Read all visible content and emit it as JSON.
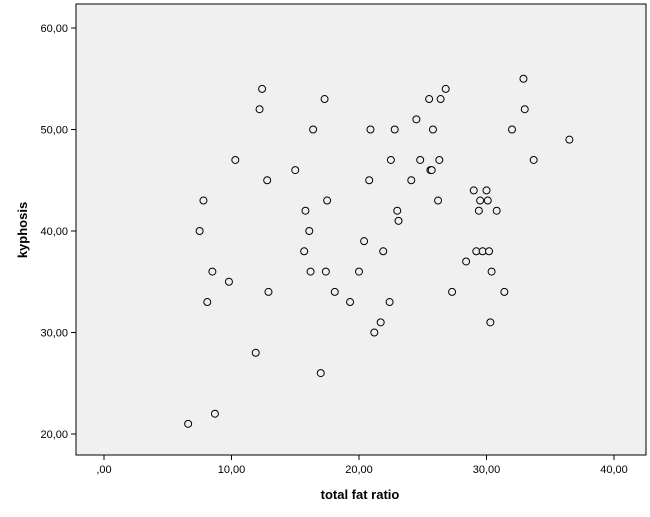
{
  "chart_data": {
    "type": "scatter",
    "title": "",
    "xlabel": "total fat ratio",
    "ylabel": "kyphosis",
    "xlim": [
      0,
      40
    ],
    "ylim": [
      20,
      60
    ],
    "x_ticks": [
      {
        "value": 0,
        "label": ",00"
      },
      {
        "value": 10,
        "label": "10,00"
      },
      {
        "value": 20,
        "label": "20,00"
      },
      {
        "value": 30,
        "label": "30,00"
      },
      {
        "value": 40,
        "label": "40,00"
      }
    ],
    "y_ticks": [
      {
        "value": 20,
        "label": "20,00"
      },
      {
        "value": 30,
        "label": "30,00"
      },
      {
        "value": 40,
        "label": "40,00"
      },
      {
        "value": 50,
        "label": "50,00"
      },
      {
        "value": 60,
        "label": "60,00"
      }
    ],
    "grid": false,
    "colors": {
      "background": "#f0f0f0",
      "marker_fill": "#f0f0f0",
      "marker_stroke": "#000000"
    },
    "points": [
      {
        "x": 6.6,
        "y": 21
      },
      {
        "x": 8.7,
        "y": 22
      },
      {
        "x": 7.5,
        "y": 40
      },
      {
        "x": 7.8,
        "y": 43
      },
      {
        "x": 8.1,
        "y": 33
      },
      {
        "x": 8.5,
        "y": 36
      },
      {
        "x": 9.8,
        "y": 35
      },
      {
        "x": 10.3,
        "y": 47
      },
      {
        "x": 11.9,
        "y": 28
      },
      {
        "x": 12.2,
        "y": 52
      },
      {
        "x": 12.4,
        "y": 54
      },
      {
        "x": 12.8,
        "y": 45
      },
      {
        "x": 12.9,
        "y": 34
      },
      {
        "x": 15.0,
        "y": 46
      },
      {
        "x": 15.7,
        "y": 38
      },
      {
        "x": 15.8,
        "y": 42
      },
      {
        "x": 16.1,
        "y": 40
      },
      {
        "x": 16.2,
        "y": 36
      },
      {
        "x": 16.4,
        "y": 50
      },
      {
        "x": 17.0,
        "y": 26
      },
      {
        "x": 17.3,
        "y": 53
      },
      {
        "x": 17.4,
        "y": 36
      },
      {
        "x": 17.5,
        "y": 43
      },
      {
        "x": 18.1,
        "y": 34
      },
      {
        "x": 19.3,
        "y": 33
      },
      {
        "x": 20.0,
        "y": 36
      },
      {
        "x": 20.4,
        "y": 39
      },
      {
        "x": 20.8,
        "y": 45
      },
      {
        "x": 20.9,
        "y": 50
      },
      {
        "x": 21.2,
        "y": 30
      },
      {
        "x": 21.7,
        "y": 31
      },
      {
        "x": 21.9,
        "y": 38
      },
      {
        "x": 22.4,
        "y": 33
      },
      {
        "x": 22.5,
        "y": 47
      },
      {
        "x": 22.8,
        "y": 50
      },
      {
        "x": 23.0,
        "y": 42
      },
      {
        "x": 23.1,
        "y": 41
      },
      {
        "x": 24.1,
        "y": 45
      },
      {
        "x": 24.5,
        "y": 51
      },
      {
        "x": 24.8,
        "y": 47
      },
      {
        "x": 25.5,
        "y": 53
      },
      {
        "x": 25.6,
        "y": 46
      },
      {
        "x": 25.7,
        "y": 46
      },
      {
        "x": 25.8,
        "y": 50
      },
      {
        "x": 26.2,
        "y": 43
      },
      {
        "x": 26.3,
        "y": 47
      },
      {
        "x": 26.4,
        "y": 53
      },
      {
        "x": 26.8,
        "y": 54
      },
      {
        "x": 27.3,
        "y": 34
      },
      {
        "x": 28.4,
        "y": 37
      },
      {
        "x": 29.0,
        "y": 44
      },
      {
        "x": 29.2,
        "y": 38
      },
      {
        "x": 29.4,
        "y": 42
      },
      {
        "x": 29.5,
        "y": 43
      },
      {
        "x": 29.7,
        "y": 38
      },
      {
        "x": 30.0,
        "y": 44
      },
      {
        "x": 30.1,
        "y": 43
      },
      {
        "x": 30.2,
        "y": 38
      },
      {
        "x": 30.3,
        "y": 31
      },
      {
        "x": 30.4,
        "y": 36
      },
      {
        "x": 30.8,
        "y": 42
      },
      {
        "x": 31.4,
        "y": 34
      },
      {
        "x": 32.0,
        "y": 50
      },
      {
        "x": 32.9,
        "y": 55
      },
      {
        "x": 33.0,
        "y": 52
      },
      {
        "x": 33.7,
        "y": 47
      },
      {
        "x": 36.5,
        "y": 49
      }
    ]
  }
}
